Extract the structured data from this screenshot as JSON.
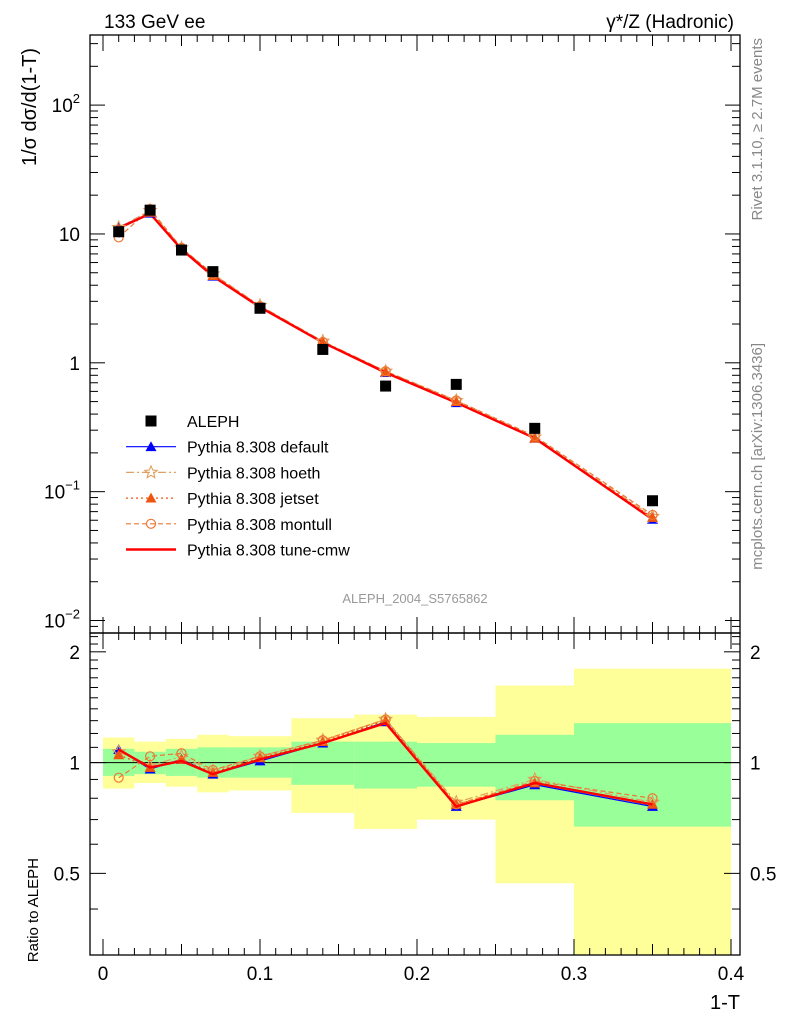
{
  "header": {
    "process": "133 GeV ee",
    "channel": "γ*/Z (Hadronic)"
  },
  "side_labels": {
    "rivet": "Rivet 3.1.10, ≥ 2.7M events",
    "source": "mcplots.cern.ch [arXiv:1306.3436]"
  },
  "analysis_id": "ALEPH_2004_S5765862",
  "axis_titles": {
    "main_y": "1/σ  dσ/d(1-T)",
    "ratio_y": "Ratio to ALEPH",
    "x": "1-T"
  },
  "chart_data": [
    {
      "type": "scatter",
      "title": "",
      "y_scale": "log",
      "xlim": [
        0,
        0.4
      ],
      "ylim": [
        0.008,
        350
      ],
      "x_ticks": [
        "0",
        "0.1",
        "0.2",
        "0.3",
        "0.4"
      ],
      "y_ticks": [
        "10^-2",
        "10^-1",
        "1",
        "10",
        "10^2"
      ],
      "legend_position": "bottom-left",
      "x": [
        0.01,
        0.03,
        0.05,
        0.07,
        0.1,
        0.14,
        0.18,
        0.225,
        0.275,
        0.35
      ],
      "series": [
        {
          "name": "ALEPH",
          "style": "data-square",
          "color": "#000000",
          "values": [
            10.4,
            15.3,
            7.5,
            5.1,
            2.65,
            1.27,
            0.66,
            0.68,
            0.31,
            0.085
          ]
        },
        {
          "name": "Pythia 8.308 default",
          "style": "line-triangle",
          "color": "#0000ff",
          "values": [
            11.3,
            14.5,
            7.65,
            4.7,
            2.7,
            1.44,
            0.84,
            0.49,
            0.26,
            0.061
          ]
        },
        {
          "name": "Pythia 8.308 hoeth",
          "style": "dashdot-star",
          "color": "#e0a060",
          "values": [
            11.2,
            15.2,
            7.8,
            4.9,
            2.78,
            1.47,
            0.86,
            0.51,
            0.265,
            0.064
          ]
        },
        {
          "name": "Pythia 8.308 jetset",
          "style": "dotted-triangle",
          "color": "#ee5511",
          "values": [
            10.9,
            14.7,
            7.7,
            4.75,
            2.75,
            1.45,
            0.85,
            0.5,
            0.26,
            0.063
          ]
        },
        {
          "name": "Pythia 8.308 montull",
          "style": "dashed-circle",
          "color": "#ee7733",
          "values": [
            9.4,
            15.6,
            7.8,
            4.9,
            2.75,
            1.45,
            0.86,
            0.51,
            0.27,
            0.066
          ]
        },
        {
          "name": "Pythia 8.308 tune-cmw",
          "style": "solid",
          "color": "#ff0000",
          "values": [
            11.1,
            14.4,
            7.6,
            4.7,
            2.7,
            1.44,
            0.84,
            0.49,
            0.26,
            0.061
          ]
        }
      ]
    },
    {
      "type": "line",
      "title": "",
      "ylabel": "Ratio to ALEPH",
      "xlabel": "1-T",
      "xlim": [
        0,
        0.4
      ],
      "ylim": [
        0.3,
        2.25
      ],
      "reference": 1,
      "y_ticks": [
        0.5,
        1,
        2
      ],
      "bins": [
        [
          0,
          0.02
        ],
        [
          0.02,
          0.04
        ],
        [
          0.04,
          0.06
        ],
        [
          0.06,
          0.08
        ],
        [
          0.08,
          0.12
        ],
        [
          0.12,
          0.16
        ],
        [
          0.16,
          0.2
        ],
        [
          0.2,
          0.25
        ],
        [
          0.25,
          0.3
        ],
        [
          0.3,
          0.4
        ]
      ],
      "band_stat": [
        [
          0.92,
          1.09
        ],
        [
          0.93,
          1.07
        ],
        [
          0.92,
          1.09
        ],
        [
          0.91,
          1.1
        ],
        [
          0.91,
          1.1
        ],
        [
          0.87,
          1.14
        ],
        [
          0.85,
          1.14
        ],
        [
          0.86,
          1.13
        ],
        [
          0.79,
          1.19
        ],
        [
          0.67,
          1.28
        ]
      ],
      "band_total": [
        [
          0.85,
          1.17
        ],
        [
          0.88,
          1.14
        ],
        [
          0.86,
          1.16
        ],
        [
          0.83,
          1.19
        ],
        [
          0.84,
          1.18
        ],
        [
          0.73,
          1.32
        ],
        [
          0.66,
          1.35
        ],
        [
          0.7,
          1.33
        ],
        [
          0.47,
          1.62
        ],
        [
          0.3,
          1.8
        ]
      ],
      "x": [
        0.01,
        0.03,
        0.05,
        0.07,
        0.1,
        0.14,
        0.18,
        0.225,
        0.275,
        0.35
      ],
      "series": [
        {
          "name": "Pythia 8.308 default",
          "color": "#0000ff",
          "values": [
            1.085,
            0.96,
            1.02,
            0.93,
            1.01,
            1.13,
            1.29,
            0.76,
            0.87,
            0.76
          ]
        },
        {
          "name": "Pythia 8.308 hoeth",
          "color": "#e0a060",
          "values": [
            1.07,
            0.98,
            1.04,
            0.95,
            1.04,
            1.15,
            1.31,
            0.78,
            0.9,
            0.78
          ]
        },
        {
          "name": "Pythia 8.308 jetset",
          "color": "#ee5511",
          "values": [
            1.05,
            0.97,
            1.02,
            0.94,
            1.03,
            1.14,
            1.3,
            0.77,
            0.88,
            0.77
          ]
        },
        {
          "name": "Pythia 8.308 montull",
          "color": "#ee7733",
          "values": [
            0.91,
            1.04,
            1.06,
            0.955,
            1.04,
            1.15,
            1.31,
            0.77,
            0.89,
            0.8
          ]
        },
        {
          "name": "Pythia 8.308 tune-cmw",
          "color": "#ff0000",
          "values": [
            1.085,
            0.97,
            1.01,
            0.93,
            1.02,
            1.13,
            1.28,
            0.76,
            0.88,
            0.77
          ]
        }
      ]
    }
  ]
}
